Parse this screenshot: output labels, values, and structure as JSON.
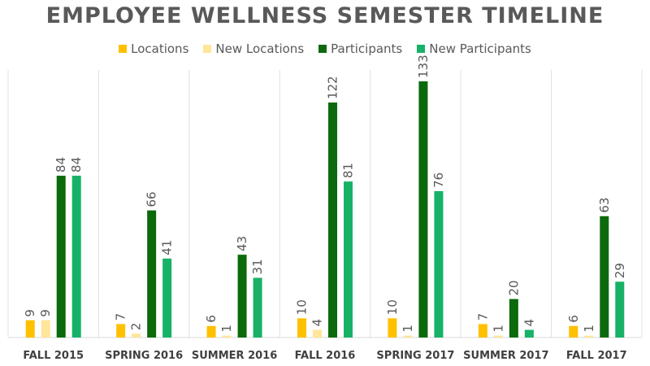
{
  "chart_data": {
    "type": "bar",
    "title": "EMPLOYEE WELLNESS SEMESTER TIMELINE",
    "categories": [
      "FALL 2015",
      "SPRING 2016",
      "SUMMER 2016",
      "FALL 2016",
      "SPRING 2017",
      "SUMMER 2017",
      "FALL 2017"
    ],
    "series": [
      {
        "name": "Locations",
        "color": "#FFC000",
        "values": [
          9,
          7,
          6,
          10,
          10,
          7,
          6
        ]
      },
      {
        "name": "New Locations",
        "color": "#FFE699",
        "values": [
          9,
          2,
          1,
          4,
          1,
          1,
          1
        ]
      },
      {
        "name": "Participants",
        "color": "#0B6A0B",
        "values": [
          84,
          66,
          43,
          122,
          133,
          20,
          63
        ]
      },
      {
        "name": "New Participants",
        "color": "#17B267",
        "values": [
          84,
          41,
          31,
          81,
          76,
          4,
          29
        ]
      }
    ],
    "ylim": [
      0,
      140
    ],
    "grid": "vertical-separators",
    "legend": "top-center",
    "data_labels": true
  }
}
